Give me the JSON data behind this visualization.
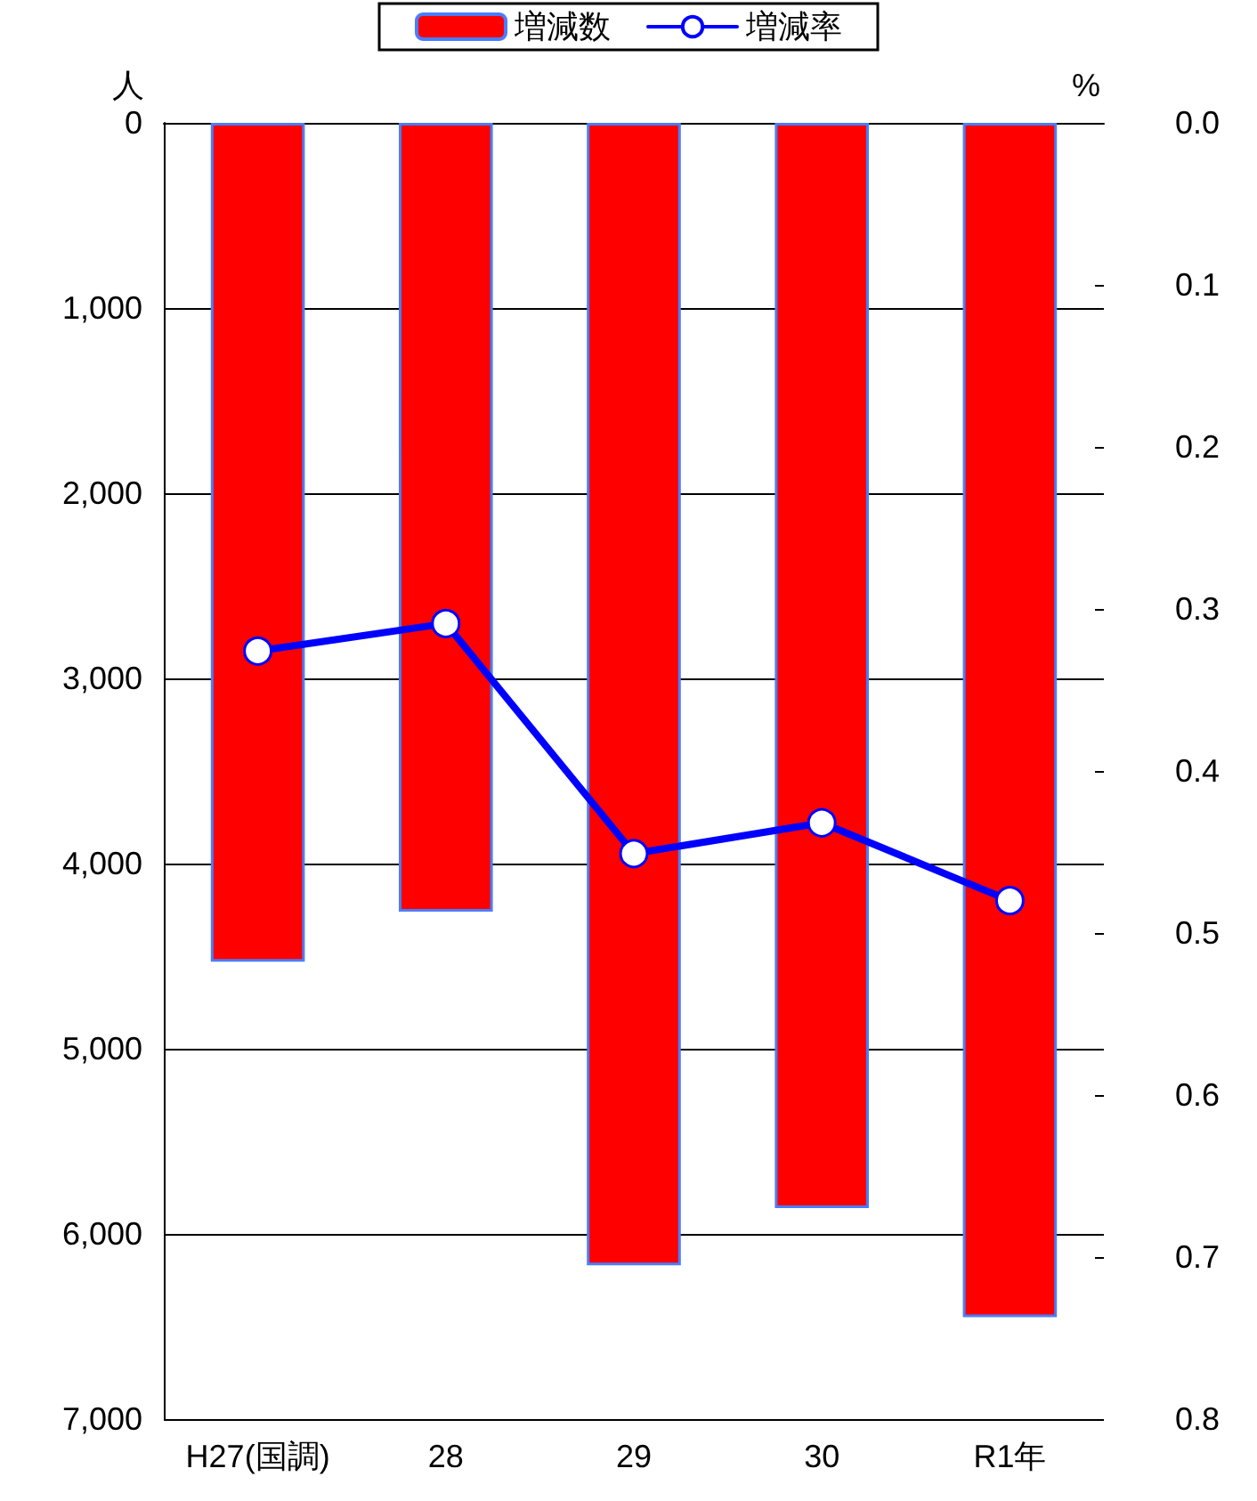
{
  "chart_data": {
    "type": "bar",
    "ylabel": "人",
    "y2label": "%",
    "categories": [
      "H27(国調)",
      "28",
      "29",
      "30",
      "R1年"
    ],
    "series": [
      {
        "name": "増減数",
        "color": "#ff0000",
        "values": [
          4530,
          4260,
          6170,
          5860,
          6450
        ]
      },
      {
        "name": "増減率",
        "type": "line",
        "axis": "y2",
        "color": "#0000ff",
        "marker": "circle",
        "values": [
          0.326,
          0.309,
          0.451,
          0.432,
          0.48
        ]
      }
    ],
    "ylim": [
      7000,
      0
    ],
    "yticks": [
      {
        "value": 0,
        "label": "0"
      },
      {
        "value": 1000,
        "label": "1,000"
      },
      {
        "value": 2000,
        "label": "2,000"
      },
      {
        "value": 3000,
        "label": "3,000"
      },
      {
        "value": 4000,
        "label": "4,000"
      },
      {
        "value": 5000,
        "label": "5,000"
      },
      {
        "value": 6000,
        "label": "6,000"
      },
      {
        "value": 7000,
        "label": "7,000"
      }
    ],
    "y2lim": [
      0.8,
      0
    ],
    "y2ticks": [
      {
        "value": 0,
        "label": "0.0"
      },
      0.1,
      0.2,
      0.3,
      0.4,
      0.5,
      0.6,
      0.7,
      0.8
    ],
    "grid": "y",
    "legend": "top"
  }
}
